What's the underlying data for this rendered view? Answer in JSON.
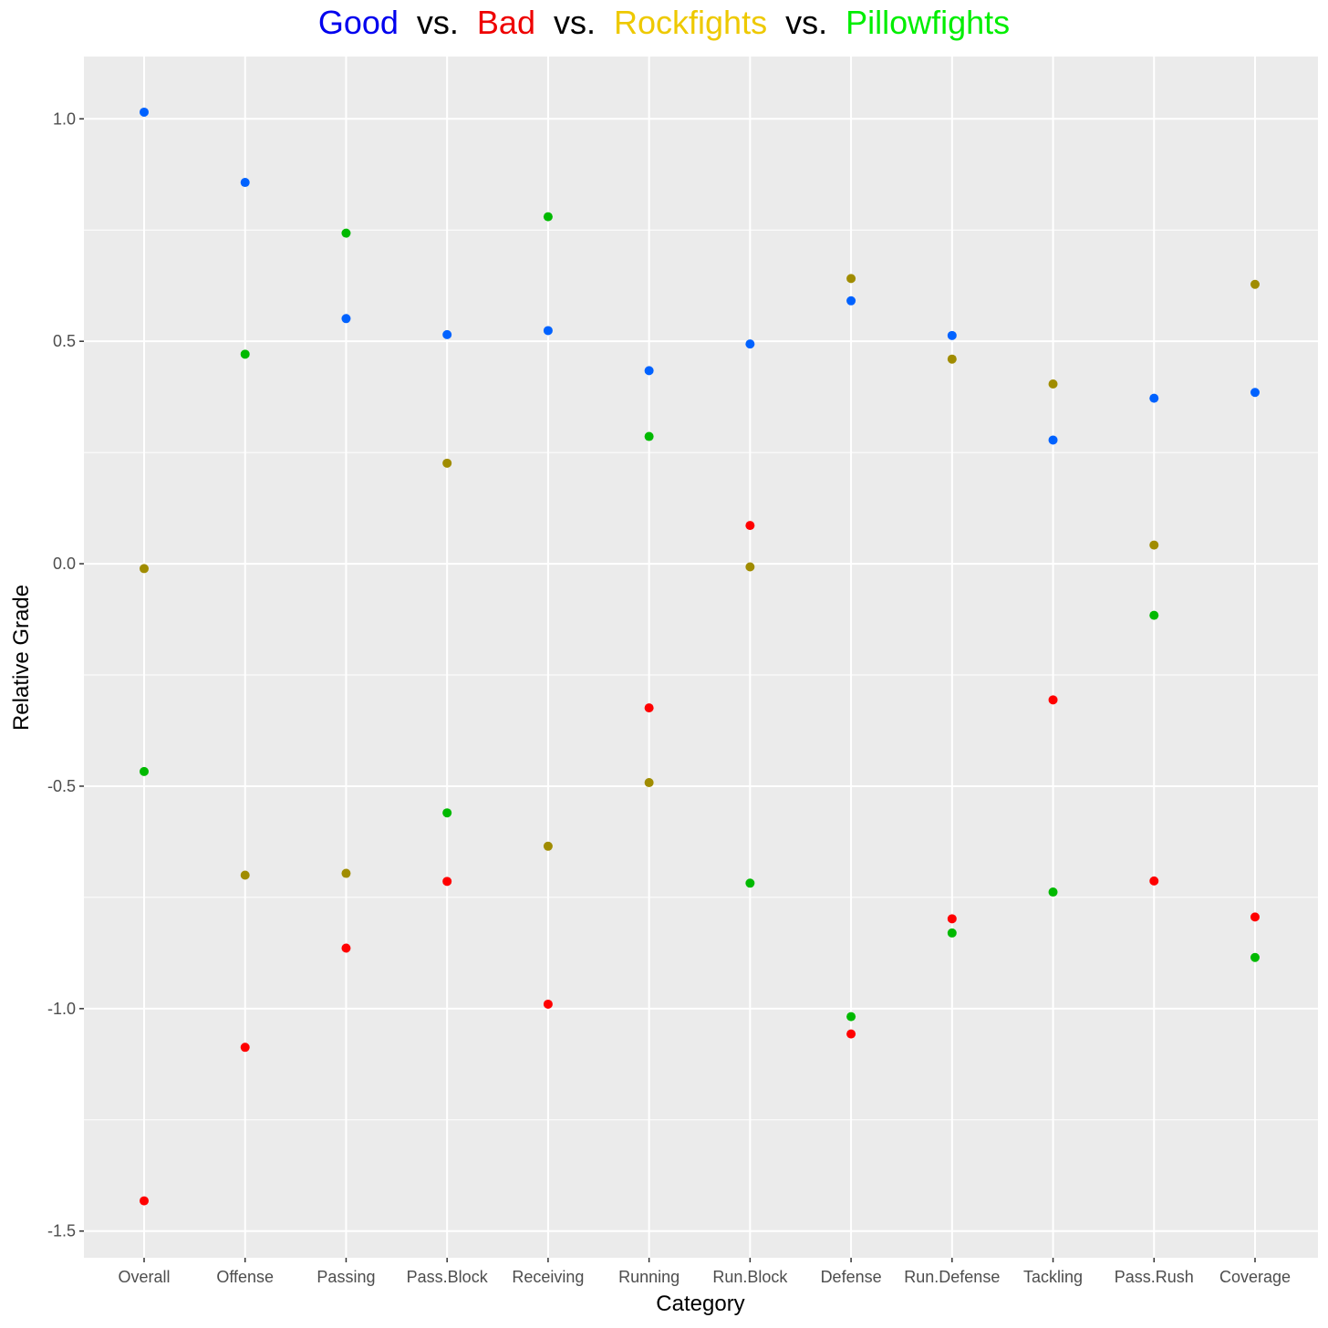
{
  "title": {
    "parts": [
      {
        "text": "Good",
        "color": "#0000ee"
      },
      {
        "text": "vs.",
        "color": "#000000"
      },
      {
        "text": "Bad",
        "color": "#ee0000"
      },
      {
        "text": "vs.",
        "color": "#000000"
      },
      {
        "text": "Rockfights",
        "color": "#eec900"
      },
      {
        "text": "vs.",
        "color": "#000000"
      },
      {
        "text": "Pillowfights",
        "color": "#00ee00"
      }
    ]
  },
  "chart_data": {
    "type": "scatter",
    "xlabel": "Category",
    "ylabel": "Relative Grade",
    "categories": [
      "Overall",
      "Offense",
      "Passing",
      "Pass.Block",
      "Receiving",
      "Running",
      "Run.Block",
      "Defense",
      "Run.Defense",
      "Tackling",
      "Pass.Rush",
      "Coverage"
    ],
    "ylim": [
      -1.56,
      1.14
    ],
    "yticks": [
      -1.5,
      -1.0,
      -0.5,
      0.0,
      0.5,
      1.0
    ],
    "ytick_labels": [
      "-1.5",
      "-1.0",
      "-0.5",
      "0.0",
      "0.5",
      "1.0"
    ],
    "grid": true,
    "legend": "none",
    "series": [
      {
        "color": "#0062ff",
        "values": [
          1.015,
          0.857,
          0.551,
          0.515,
          0.524,
          0.434,
          0.494,
          0.591,
          0.513,
          0.278,
          0.372,
          0.385
        ]
      },
      {
        "color": "#ff0000",
        "values": [
          -1.432,
          -1.087,
          -0.864,
          -0.714,
          -0.99,
          -0.324,
          0.086,
          -1.057,
          -0.798,
          -0.306,
          -0.713,
          -0.794
        ]
      },
      {
        "color": "#a08c00",
        "values": [
          -0.011,
          -0.7,
          -0.696,
          0.226,
          -0.635,
          -0.492,
          -0.007,
          0.641,
          0.46,
          0.404,
          0.042,
          0.628
        ]
      },
      {
        "color": "#00b900",
        "values": [
          -0.467,
          0.471,
          0.743,
          -0.56,
          0.78,
          0.286,
          -0.718,
          -1.018,
          -0.83,
          -0.738,
          -0.116,
          -0.885
        ]
      }
    ]
  }
}
